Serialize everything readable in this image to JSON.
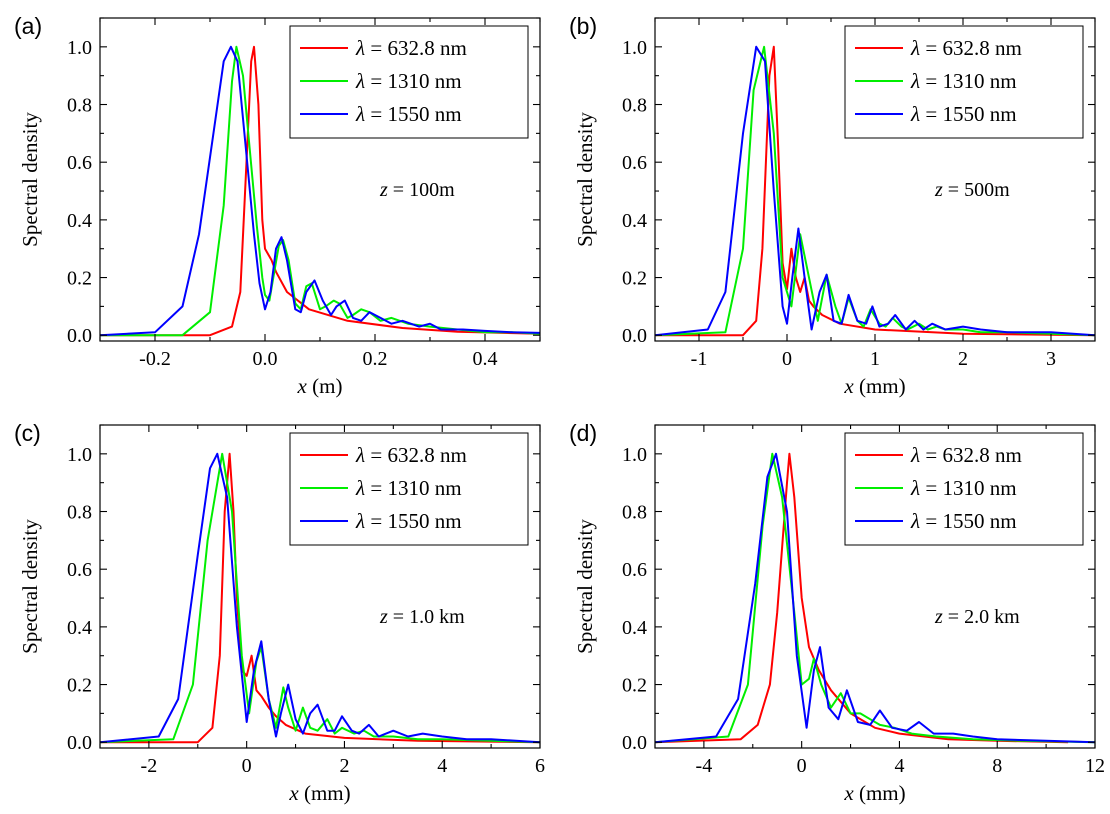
{
  "chart_data": [
    {
      "type": "line",
      "panel_label": "(a)",
      "xlabel_var": "x",
      "xlabel_unit": " (m)",
      "ylabel": "Spectral density",
      "xlim": [
        -0.3,
        0.5
      ],
      "ylim": [
        -0.02,
        1.1
      ],
      "xticks": [
        -0.2,
        0.0,
        0.2,
        0.4
      ],
      "xtick_labels": [
        "-0.2",
        "0.0",
        "0.2",
        "0.4"
      ],
      "yticks": [
        0.0,
        0.2,
        0.4,
        0.6,
        0.8,
        1.0
      ],
      "ytick_labels": [
        "0.0",
        "0.2",
        "0.4",
        "0.6",
        "0.8",
        "1.0"
      ],
      "annotation_var": "z",
      "annotation_value": " = 100m",
      "legend_placement": "top-right",
      "series": [
        {
          "name": "λ = 632.8 nm",
          "label_symbol": "λ",
          "label_value": " = 632.8 nm",
          "color": "#ff0000",
          "x": [
            -0.3,
            -0.1,
            -0.06,
            -0.045,
            -0.035,
            -0.025,
            -0.02,
            -0.012,
            -0.005,
            0.0,
            0.006,
            0.012,
            0.02,
            0.04,
            0.08,
            0.15,
            0.25,
            0.35,
            0.5
          ],
          "y": [
            0.0,
            0.0,
            0.03,
            0.15,
            0.55,
            0.95,
            1.0,
            0.8,
            0.4,
            0.3,
            0.28,
            0.26,
            0.22,
            0.15,
            0.09,
            0.05,
            0.025,
            0.012,
            0.005
          ]
        },
        {
          "name": "λ = 1310 nm",
          "label_symbol": "λ",
          "label_value": " = 1310 nm",
          "color": "#00ee00",
          "x": [
            -0.3,
            -0.15,
            -0.1,
            -0.075,
            -0.06,
            -0.052,
            -0.04,
            -0.028,
            -0.015,
            -0.005,
            0.0,
            0.008,
            0.015,
            0.025,
            0.033,
            0.043,
            0.055,
            0.065,
            0.075,
            0.085,
            0.1,
            0.11,
            0.125,
            0.135,
            0.15,
            0.16,
            0.175,
            0.19,
            0.21,
            0.23,
            0.26,
            0.3,
            0.35,
            0.4,
            0.45,
            0.5
          ],
          "y": [
            0.0,
            0.0,
            0.08,
            0.45,
            0.88,
            1.0,
            0.9,
            0.65,
            0.38,
            0.2,
            0.14,
            0.12,
            0.2,
            0.31,
            0.33,
            0.26,
            0.11,
            0.09,
            0.17,
            0.18,
            0.09,
            0.1,
            0.12,
            0.11,
            0.06,
            0.07,
            0.09,
            0.08,
            0.05,
            0.06,
            0.04,
            0.03,
            0.02,
            0.01,
            0.01,
            0.005
          ]
        },
        {
          "name": "λ = 1550 nm",
          "label_symbol": "λ",
          "label_value": " = 1550 nm",
          "color": "#0000ff",
          "x": [
            -0.3,
            -0.2,
            -0.15,
            -0.12,
            -0.09,
            -0.075,
            -0.062,
            -0.05,
            -0.035,
            -0.02,
            -0.01,
            0.0,
            0.01,
            0.02,
            0.03,
            0.04,
            0.055,
            0.065,
            0.075,
            0.09,
            0.105,
            0.12,
            0.13,
            0.145,
            0.16,
            0.175,
            0.19,
            0.21,
            0.23,
            0.25,
            0.28,
            0.3,
            0.32,
            0.36,
            0.4,
            0.45,
            0.5
          ],
          "y": [
            0.0,
            0.01,
            0.1,
            0.35,
            0.75,
            0.95,
            1.0,
            0.95,
            0.65,
            0.35,
            0.18,
            0.09,
            0.15,
            0.3,
            0.34,
            0.26,
            0.09,
            0.08,
            0.15,
            0.19,
            0.12,
            0.07,
            0.1,
            0.12,
            0.06,
            0.05,
            0.08,
            0.06,
            0.04,
            0.05,
            0.03,
            0.04,
            0.02,
            0.02,
            0.015,
            0.01,
            0.008
          ]
        }
      ]
    },
    {
      "type": "line",
      "panel_label": "(b)",
      "xlabel_var": "x",
      "xlabel_unit": " (mm)",
      "ylabel": "Spectral density",
      "xlim": [
        -1.5,
        3.5
      ],
      "ylim": [
        -0.02,
        1.1
      ],
      "xticks": [
        -1,
        0,
        1,
        2,
        3
      ],
      "xtick_labels": [
        "-1",
        "0",
        "1",
        "2",
        "3"
      ],
      "yticks": [
        0.0,
        0.2,
        0.4,
        0.6,
        0.8,
        1.0
      ],
      "ytick_labels": [
        "0.0",
        "0.2",
        "0.4",
        "0.6",
        "0.8",
        "1.0"
      ],
      "annotation_var": "z",
      "annotation_value": " = 500m",
      "legend_placement": "top-right",
      "series": [
        {
          "name": "λ = 632.8 nm",
          "label_symbol": "λ",
          "label_value": " = 632.8 nm",
          "color": "#ff0000",
          "x": [
            -1.5,
            -0.5,
            -0.35,
            -0.28,
            -0.2,
            -0.15,
            -0.1,
            -0.05,
            0.0,
            0.05,
            0.1,
            0.15,
            0.2,
            0.25,
            0.3,
            0.4,
            0.6,
            1.0,
            2.0,
            3.5
          ],
          "y": [
            0.0,
            0.0,
            0.05,
            0.3,
            0.9,
            1.0,
            0.65,
            0.25,
            0.16,
            0.3,
            0.2,
            0.15,
            0.2,
            0.12,
            0.1,
            0.07,
            0.04,
            0.02,
            0.005,
            0.0
          ]
        },
        {
          "name": "λ = 1310 nm",
          "label_symbol": "λ",
          "label_value": " = 1310 nm",
          "color": "#00ee00",
          "x": [
            -1.5,
            -0.7,
            -0.5,
            -0.38,
            -0.26,
            -0.15,
            -0.05,
            0.05,
            0.15,
            0.25,
            0.35,
            0.45,
            0.55,
            0.62,
            0.7,
            0.8,
            0.87,
            0.95,
            1.05,
            1.12,
            1.2,
            1.3,
            1.37,
            1.5,
            1.6,
            1.7,
            1.8,
            2.0,
            2.2,
            2.5,
            3.0,
            3.5
          ],
          "y": [
            0.0,
            0.01,
            0.3,
            0.85,
            1.0,
            0.7,
            0.2,
            0.1,
            0.35,
            0.2,
            0.05,
            0.21,
            0.1,
            0.04,
            0.13,
            0.05,
            0.03,
            0.09,
            0.04,
            0.03,
            0.06,
            0.03,
            0.02,
            0.04,
            0.02,
            0.03,
            0.02,
            0.02,
            0.01,
            0.01,
            0.005,
            0.0
          ]
        },
        {
          "name": "λ = 1550 nm",
          "label_symbol": "λ",
          "label_value": " = 1550 nm",
          "color": "#0000ff",
          "x": [
            -1.5,
            -0.9,
            -0.7,
            -0.5,
            -0.35,
            -0.25,
            -0.15,
            -0.05,
            0.0,
            0.06,
            0.13,
            0.2,
            0.28,
            0.37,
            0.45,
            0.53,
            0.62,
            0.7,
            0.8,
            0.9,
            0.97,
            1.05,
            1.15,
            1.23,
            1.35,
            1.45,
            1.55,
            1.65,
            1.8,
            2.0,
            2.2,
            2.5,
            3.0,
            3.5
          ],
          "y": [
            0.0,
            0.02,
            0.15,
            0.7,
            1.0,
            0.95,
            0.5,
            0.1,
            0.04,
            0.2,
            0.37,
            0.2,
            0.02,
            0.15,
            0.21,
            0.05,
            0.04,
            0.14,
            0.05,
            0.04,
            0.1,
            0.03,
            0.04,
            0.07,
            0.02,
            0.05,
            0.02,
            0.04,
            0.02,
            0.03,
            0.02,
            0.01,
            0.01,
            0.0
          ]
        }
      ]
    },
    {
      "type": "line",
      "panel_label": "(c)",
      "xlabel_var": "x",
      "xlabel_unit": " (mm)",
      "ylabel": "Spectral density",
      "xlim": [
        -3,
        6
      ],
      "ylim": [
        -0.02,
        1.1
      ],
      "xticks": [
        -2,
        0,
        2,
        4,
        6
      ],
      "xtick_labels": [
        "-2",
        "0",
        "2",
        "4",
        "6"
      ],
      "yticks": [
        0.0,
        0.2,
        0.4,
        0.6,
        0.8,
        1.0
      ],
      "ytick_labels": [
        "0.0",
        "0.2",
        "0.4",
        "0.6",
        "0.8",
        "1.0"
      ],
      "annotation_var": "z",
      "annotation_value": " = 1.0 km",
      "legend_placement": "top-right",
      "series": [
        {
          "name": "λ = 632.8 nm",
          "label_symbol": "λ",
          "label_value": " = 632.8 nm",
          "color": "#ff0000",
          "x": [
            -3,
            -1.0,
            -0.7,
            -0.55,
            -0.45,
            -0.35,
            -0.27,
            -0.2,
            -0.1,
            0.0,
            0.1,
            0.2,
            0.3,
            0.45,
            0.6,
            0.8,
            1.2,
            2.0,
            3.5,
            6.0
          ],
          "y": [
            0.0,
            0.0,
            0.05,
            0.3,
            0.8,
            1.0,
            0.8,
            0.5,
            0.25,
            0.23,
            0.3,
            0.18,
            0.16,
            0.12,
            0.09,
            0.06,
            0.03,
            0.015,
            0.005,
            0.0
          ]
        },
        {
          "name": "λ = 1310 nm",
          "label_symbol": "λ",
          "label_value": " = 1310 nm",
          "color": "#00ee00",
          "x": [
            -3,
            -1.5,
            -1.1,
            -0.8,
            -0.5,
            -0.3,
            -0.1,
            0.05,
            0.2,
            0.3,
            0.45,
            0.6,
            0.75,
            0.85,
            1.0,
            1.15,
            1.3,
            1.45,
            1.65,
            1.8,
            1.95,
            2.2,
            2.4,
            2.6,
            3.0,
            3.5,
            4.0,
            5.0,
            6.0
          ],
          "y": [
            0.0,
            0.01,
            0.2,
            0.7,
            1.0,
            0.8,
            0.3,
            0.1,
            0.28,
            0.33,
            0.15,
            0.05,
            0.19,
            0.12,
            0.04,
            0.12,
            0.05,
            0.04,
            0.08,
            0.03,
            0.05,
            0.03,
            0.04,
            0.02,
            0.02,
            0.01,
            0.01,
            0.005,
            0.0
          ]
        },
        {
          "name": "λ = 1550 nm",
          "label_symbol": "λ",
          "label_value": " = 1550 nm",
          "color": "#0000ff",
          "x": [
            -3,
            -1.8,
            -1.4,
            -1.0,
            -0.75,
            -0.6,
            -0.4,
            -0.2,
            0.0,
            0.15,
            0.3,
            0.45,
            0.6,
            0.7,
            0.85,
            1.0,
            1.15,
            1.3,
            1.45,
            1.65,
            1.8,
            1.95,
            2.15,
            2.3,
            2.5,
            2.7,
            3.0,
            3.3,
            3.6,
            4.0,
            4.5,
            5.0,
            6.0
          ],
          "y": [
            0.0,
            0.02,
            0.15,
            0.65,
            0.95,
            1.0,
            0.85,
            0.4,
            0.07,
            0.25,
            0.35,
            0.15,
            0.02,
            0.1,
            0.2,
            0.08,
            0.03,
            0.1,
            0.13,
            0.04,
            0.04,
            0.09,
            0.04,
            0.03,
            0.06,
            0.02,
            0.04,
            0.02,
            0.03,
            0.02,
            0.01,
            0.01,
            0.0
          ]
        }
      ]
    },
    {
      "type": "line",
      "panel_label": "(d)",
      "xlabel_var": "x",
      "xlabel_unit": " (mm)",
      "ylabel": "Spectral density",
      "xlim": [
        -6,
        12
      ],
      "ylim": [
        -0.02,
        1.1
      ],
      "xticks": [
        -4,
        0,
        4,
        8,
        12
      ],
      "xtick_labels": [
        "-4",
        "0",
        "4",
        "8",
        "12"
      ],
      "yticks": [
        0.0,
        0.2,
        0.4,
        0.6,
        0.8,
        1.0
      ],
      "ytick_labels": [
        "0.0",
        "0.2",
        "0.4",
        "0.6",
        "0.8",
        "1.0"
      ],
      "annotation_var": "z",
      "annotation_value": " = 2.0 km",
      "legend_placement": "top-right",
      "series": [
        {
          "name": "λ = 632.8 nm",
          "label_symbol": "λ",
          "label_value": " = 632.8 nm",
          "color": "#ff0000",
          "x": [
            -6,
            -2.5,
            -1.8,
            -1.3,
            -1.0,
            -0.6,
            -0.5,
            -0.3,
            0.0,
            0.3,
            0.7,
            1.2,
            2.0,
            3.0,
            4.0,
            6.0,
            8.0,
            10.9
          ],
          "y": [
            0.0,
            0.01,
            0.06,
            0.2,
            0.45,
            0.9,
            1.0,
            0.85,
            0.5,
            0.33,
            0.25,
            0.18,
            0.1,
            0.05,
            0.03,
            0.01,
            0.005,
            0.0
          ]
        },
        {
          "name": "λ = 1310 nm",
          "label_symbol": "λ",
          "label_value": " = 1310 nm",
          "color": "#00ee00",
          "x": [
            -6,
            -3.0,
            -2.2,
            -1.6,
            -1.2,
            -0.8,
            -0.3,
            0.0,
            0.3,
            0.5,
            0.8,
            1.2,
            1.6,
            2.0,
            2.4,
            2.8,
            3.2,
            3.8,
            4.5,
            5.5,
            7.0,
            9.0,
            12.0
          ],
          "y": [
            0.0,
            0.02,
            0.2,
            0.75,
            1.0,
            0.85,
            0.45,
            0.2,
            0.22,
            0.29,
            0.2,
            0.12,
            0.17,
            0.1,
            0.1,
            0.08,
            0.06,
            0.05,
            0.03,
            0.02,
            0.01,
            0.005,
            0.0
          ]
        },
        {
          "name": "λ = 1550 nm",
          "label_symbol": "λ",
          "label_value": " = 1550 nm",
          "color": "#0000ff",
          "x": [
            -6,
            -3.5,
            -2.6,
            -1.9,
            -1.4,
            -1.05,
            -0.6,
            -0.2,
            0.2,
            0.5,
            0.75,
            1.1,
            1.5,
            1.85,
            2.3,
            2.8,
            3.2,
            3.7,
            4.3,
            4.8,
            5.4,
            6.2,
            7.0,
            8.0,
            10.0,
            12.0
          ],
          "y": [
            0.0,
            0.02,
            0.15,
            0.55,
            0.92,
            1.0,
            0.8,
            0.3,
            0.05,
            0.25,
            0.33,
            0.12,
            0.08,
            0.18,
            0.07,
            0.06,
            0.11,
            0.05,
            0.04,
            0.07,
            0.03,
            0.03,
            0.02,
            0.01,
            0.005,
            0.0
          ]
        }
      ]
    }
  ]
}
